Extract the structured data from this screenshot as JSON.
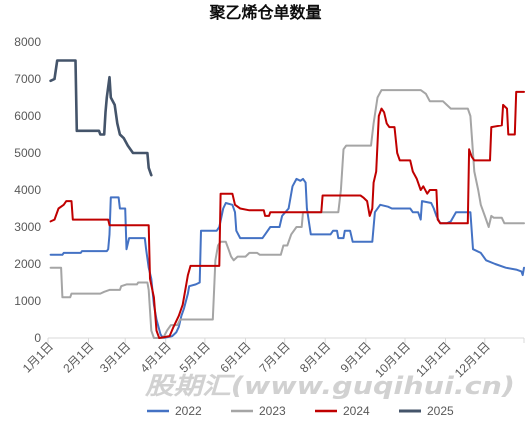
{
  "watermark": "股期汇(www.guqihui.cn)",
  "chart_data": {
    "type": "line",
    "title": "聚乙烯仓单数量",
    "xlim": [
      "01-01",
      "12-31"
    ],
    "ylim": [
      0,
      8000
    ],
    "yticks": [
      0,
      1000,
      2000,
      3000,
      4000,
      5000,
      6000,
      7000,
      8000
    ],
    "xticks": [
      "1月1日",
      "2月1日",
      "3月1日",
      "4月1日",
      "5月1日",
      "6月1日",
      "7月1日",
      "8月1日",
      "9月1日",
      "10月1日",
      "11月1日",
      "12月1日"
    ],
    "grid": false,
    "legend": "bottom",
    "series": [
      {
        "name": "2022",
        "color": "#4472C4",
        "points": [
          [
            "01-03",
            2250
          ],
          [
            "01-12",
            2250
          ],
          [
            "01-13",
            2300
          ],
          [
            "01-26",
            2300
          ],
          [
            "01-27",
            2350
          ],
          [
            "02-15",
            2350
          ],
          [
            "02-16",
            2400
          ],
          [
            "02-17",
            2800
          ],
          [
            "02-18",
            3800
          ],
          [
            "02-24",
            3800
          ],
          [
            "02-25",
            3500
          ],
          [
            "03-01",
            3500
          ],
          [
            "03-02",
            2400
          ],
          [
            "03-04",
            2700
          ],
          [
            "03-16",
            2700
          ],
          [
            "03-17",
            2400
          ],
          [
            "03-19",
            1900
          ],
          [
            "03-21",
            1600
          ],
          [
            "03-23",
            900
          ],
          [
            "03-25",
            500
          ],
          [
            "03-28",
            100
          ],
          [
            "03-30",
            0
          ],
          [
            "04-06",
            50
          ],
          [
            "04-09",
            150
          ],
          [
            "04-11",
            300
          ],
          [
            "04-13",
            600
          ],
          [
            "04-15",
            800
          ],
          [
            "04-18",
            1200
          ],
          [
            "04-19",
            1400
          ],
          [
            "04-24",
            1450
          ],
          [
            "04-27",
            1500
          ],
          [
            "04-28",
            2900
          ],
          [
            "05-10",
            2900
          ],
          [
            "05-12",
            3000
          ],
          [
            "05-15",
            3500
          ],
          [
            "05-17",
            3650
          ],
          [
            "05-22",
            3600
          ],
          [
            "05-24",
            3400
          ],
          [
            "05-25",
            2900
          ],
          [
            "05-28",
            2700
          ],
          [
            "06-14",
            2700
          ],
          [
            "06-16",
            2800
          ],
          [
            "06-20",
            3000
          ],
          [
            "06-27",
            3000
          ],
          [
            "06-29",
            3300
          ],
          [
            "07-04",
            3500
          ],
          [
            "07-07",
            4100
          ],
          [
            "07-10",
            4300
          ],
          [
            "07-13",
            4250
          ],
          [
            "07-15",
            4300
          ],
          [
            "07-17",
            4200
          ],
          [
            "07-18",
            3500
          ],
          [
            "07-21",
            2800
          ],
          [
            "08-05",
            2800
          ],
          [
            "08-07",
            2900
          ],
          [
            "08-10",
            2900
          ],
          [
            "08-11",
            2700
          ],
          [
            "08-15",
            2700
          ],
          [
            "08-16",
            2900
          ],
          [
            "08-20",
            2900
          ],
          [
            "08-22",
            2600
          ],
          [
            "09-06",
            2600
          ],
          [
            "09-08",
            3400
          ],
          [
            "09-12",
            3600
          ],
          [
            "09-18",
            3550
          ],
          [
            "09-21",
            3500
          ],
          [
            "10-05",
            3500
          ],
          [
            "10-07",
            3400
          ],
          [
            "10-11",
            3400
          ],
          [
            "10-13",
            3200
          ],
          [
            "10-14",
            3700
          ],
          [
            "10-21",
            3650
          ],
          [
            "10-23",
            3500
          ],
          [
            "10-25",
            3300
          ],
          [
            "10-28",
            3100
          ],
          [
            "11-02",
            3100
          ],
          [
            "11-05",
            3150
          ],
          [
            "11-09",
            3400
          ],
          [
            "11-20",
            3400
          ],
          [
            "11-22",
            2400
          ],
          [
            "11-28",
            2300
          ],
          [
            "12-02",
            2100
          ],
          [
            "12-09",
            2000
          ],
          [
            "12-17",
            1900
          ],
          [
            "12-25",
            1850
          ],
          [
            "12-29",
            1800
          ],
          [
            "12-30",
            1700
          ],
          [
            "12-31",
            1900
          ]
        ]
      },
      {
        "name": "2023",
        "color": "#A5A5A5",
        "points": [
          [
            "01-03",
            1900
          ],
          [
            "01-11",
            1900
          ],
          [
            "01-12",
            1100
          ],
          [
            "01-18",
            1100
          ],
          [
            "01-19",
            1200
          ],
          [
            "02-10",
            1200
          ],
          [
            "02-13",
            1250
          ],
          [
            "02-17",
            1300
          ],
          [
            "02-25",
            1300
          ],
          [
            "02-26",
            1400
          ],
          [
            "03-02",
            1450
          ],
          [
            "03-10",
            1450
          ],
          [
            "03-11",
            1500
          ],
          [
            "03-18",
            1500
          ],
          [
            "03-19",
            1300
          ],
          [
            "03-21",
            200
          ],
          [
            "03-23",
            0
          ],
          [
            "03-30",
            0
          ],
          [
            "04-02",
            200
          ],
          [
            "04-05",
            350
          ],
          [
            "04-10",
            350
          ],
          [
            "04-12",
            500
          ],
          [
            "05-07",
            500
          ],
          [
            "05-09",
            2100
          ],
          [
            "05-11",
            2500
          ],
          [
            "05-13",
            2600
          ],
          [
            "05-17",
            2600
          ],
          [
            "05-19",
            2400
          ],
          [
            "05-21",
            2200
          ],
          [
            "05-23",
            2100
          ],
          [
            "05-26",
            2200
          ],
          [
            "06-01",
            2200
          ],
          [
            "06-04",
            2300
          ],
          [
            "06-10",
            2300
          ],
          [
            "06-12",
            2250
          ],
          [
            "06-28",
            2250
          ],
          [
            "06-30",
            2500
          ],
          [
            "07-03",
            2500
          ],
          [
            "07-06",
            2800
          ],
          [
            "07-10",
            3000
          ],
          [
            "07-14",
            3000
          ],
          [
            "07-15",
            3400
          ],
          [
            "08-11",
            3400
          ],
          [
            "08-13",
            4000
          ],
          [
            "08-15",
            5100
          ],
          [
            "08-17",
            5200
          ],
          [
            "09-05",
            5200
          ],
          [
            "09-07",
            5800
          ],
          [
            "09-10",
            6500
          ],
          [
            "09-13",
            6700
          ],
          [
            "10-13",
            6700
          ],
          [
            "10-17",
            6600
          ],
          [
            "10-20",
            6400
          ],
          [
            "10-30",
            6400
          ],
          [
            "11-02",
            6300
          ],
          [
            "11-05",
            6200
          ],
          [
            "11-18",
            6200
          ],
          [
            "11-20",
            6000
          ],
          [
            "11-21",
            5500
          ],
          [
            "11-23",
            4500
          ],
          [
            "11-26",
            4000
          ],
          [
            "11-28",
            3600
          ],
          [
            "12-01",
            3300
          ],
          [
            "12-04",
            3000
          ],
          [
            "12-06",
            3300
          ],
          [
            "12-08",
            3250
          ],
          [
            "12-14",
            3250
          ],
          [
            "12-16",
            3100
          ],
          [
            "12-31",
            3100
          ]
        ]
      },
      {
        "name": "2024",
        "color": "#C00000",
        "points": [
          [
            "01-03",
            3150
          ],
          [
            "01-06",
            3200
          ],
          [
            "01-09",
            3500
          ],
          [
            "01-13",
            3600
          ],
          [
            "01-15",
            3700
          ],
          [
            "01-19",
            3700
          ],
          [
            "01-20",
            3200
          ],
          [
            "02-16",
            3200
          ],
          [
            "02-17",
            3050
          ],
          [
            "03-19",
            3050
          ],
          [
            "03-20",
            1600
          ],
          [
            "03-23",
            1100
          ],
          [
            "03-25",
            200
          ],
          [
            "03-27",
            0
          ],
          [
            "04-04",
            50
          ],
          [
            "04-07",
            300
          ],
          [
            "04-11",
            600
          ],
          [
            "04-14",
            900
          ],
          [
            "04-16",
            1300
          ],
          [
            "04-18",
            1700
          ],
          [
            "04-20",
            1950
          ],
          [
            "05-12",
            1950
          ],
          [
            "05-13",
            3900
          ],
          [
            "05-22",
            3900
          ],
          [
            "05-24",
            3600
          ],
          [
            "05-28",
            3500
          ],
          [
            "06-04",
            3450
          ],
          [
            "06-15",
            3450
          ],
          [
            "06-16",
            3300
          ],
          [
            "06-19",
            3300
          ],
          [
            "06-20",
            3400
          ],
          [
            "07-29",
            3400
          ],
          [
            "07-30",
            3850
          ],
          [
            "08-28",
            3850
          ],
          [
            "08-30",
            3800
          ],
          [
            "09-02",
            3700
          ],
          [
            "09-04",
            3300
          ],
          [
            "09-06",
            3500
          ],
          [
            "09-07",
            4200
          ],
          [
            "09-09",
            4500
          ],
          [
            "09-11",
            6000
          ],
          [
            "09-13",
            6200
          ],
          [
            "09-15",
            6100
          ],
          [
            "09-17",
            5800
          ],
          [
            "09-19",
            5700
          ],
          [
            "09-23",
            5700
          ],
          [
            "09-25",
            5000
          ],
          [
            "09-27",
            4800
          ],
          [
            "10-05",
            4800
          ],
          [
            "10-07",
            4500
          ],
          [
            "10-10",
            4300
          ],
          [
            "10-13",
            4000
          ],
          [
            "10-15",
            4100
          ],
          [
            "10-18",
            3900
          ],
          [
            "10-20",
            4000
          ],
          [
            "10-25",
            4000
          ],
          [
            "10-26",
            3200
          ],
          [
            "10-28",
            3100
          ],
          [
            "11-18",
            3100
          ],
          [
            "11-19",
            5100
          ],
          [
            "11-21",
            4900
          ],
          [
            "11-23",
            4800
          ],
          [
            "12-05",
            4800
          ],
          [
            "12-06",
            5700
          ],
          [
            "12-14",
            5750
          ],
          [
            "12-15",
            6300
          ],
          [
            "12-18",
            6200
          ],
          [
            "12-19",
            5500
          ],
          [
            "12-24",
            5500
          ],
          [
            "12-25",
            6650
          ],
          [
            "12-31",
            6650
          ]
        ]
      },
      {
        "name": "2025",
        "color": "#44546A",
        "points": [
          [
            "01-03",
            6950
          ],
          [
            "01-06",
            7000
          ],
          [
            "01-08",
            7500
          ],
          [
            "01-22",
            7500
          ],
          [
            "01-23",
            5600
          ],
          [
            "02-09",
            5600
          ],
          [
            "02-10",
            5500
          ],
          [
            "02-13",
            5500
          ],
          [
            "02-14",
            6100
          ],
          [
            "02-15",
            6500
          ],
          [
            "02-17",
            7050
          ],
          [
            "02-18",
            6500
          ],
          [
            "02-21",
            6300
          ],
          [
            "02-23",
            5800
          ],
          [
            "02-25",
            5500
          ],
          [
            "02-28",
            5400
          ],
          [
            "03-03",
            5200
          ],
          [
            "03-07",
            5000
          ],
          [
            "03-18",
            5000
          ],
          [
            "03-19",
            4600
          ],
          [
            "03-21",
            4400
          ]
        ]
      }
    ]
  }
}
